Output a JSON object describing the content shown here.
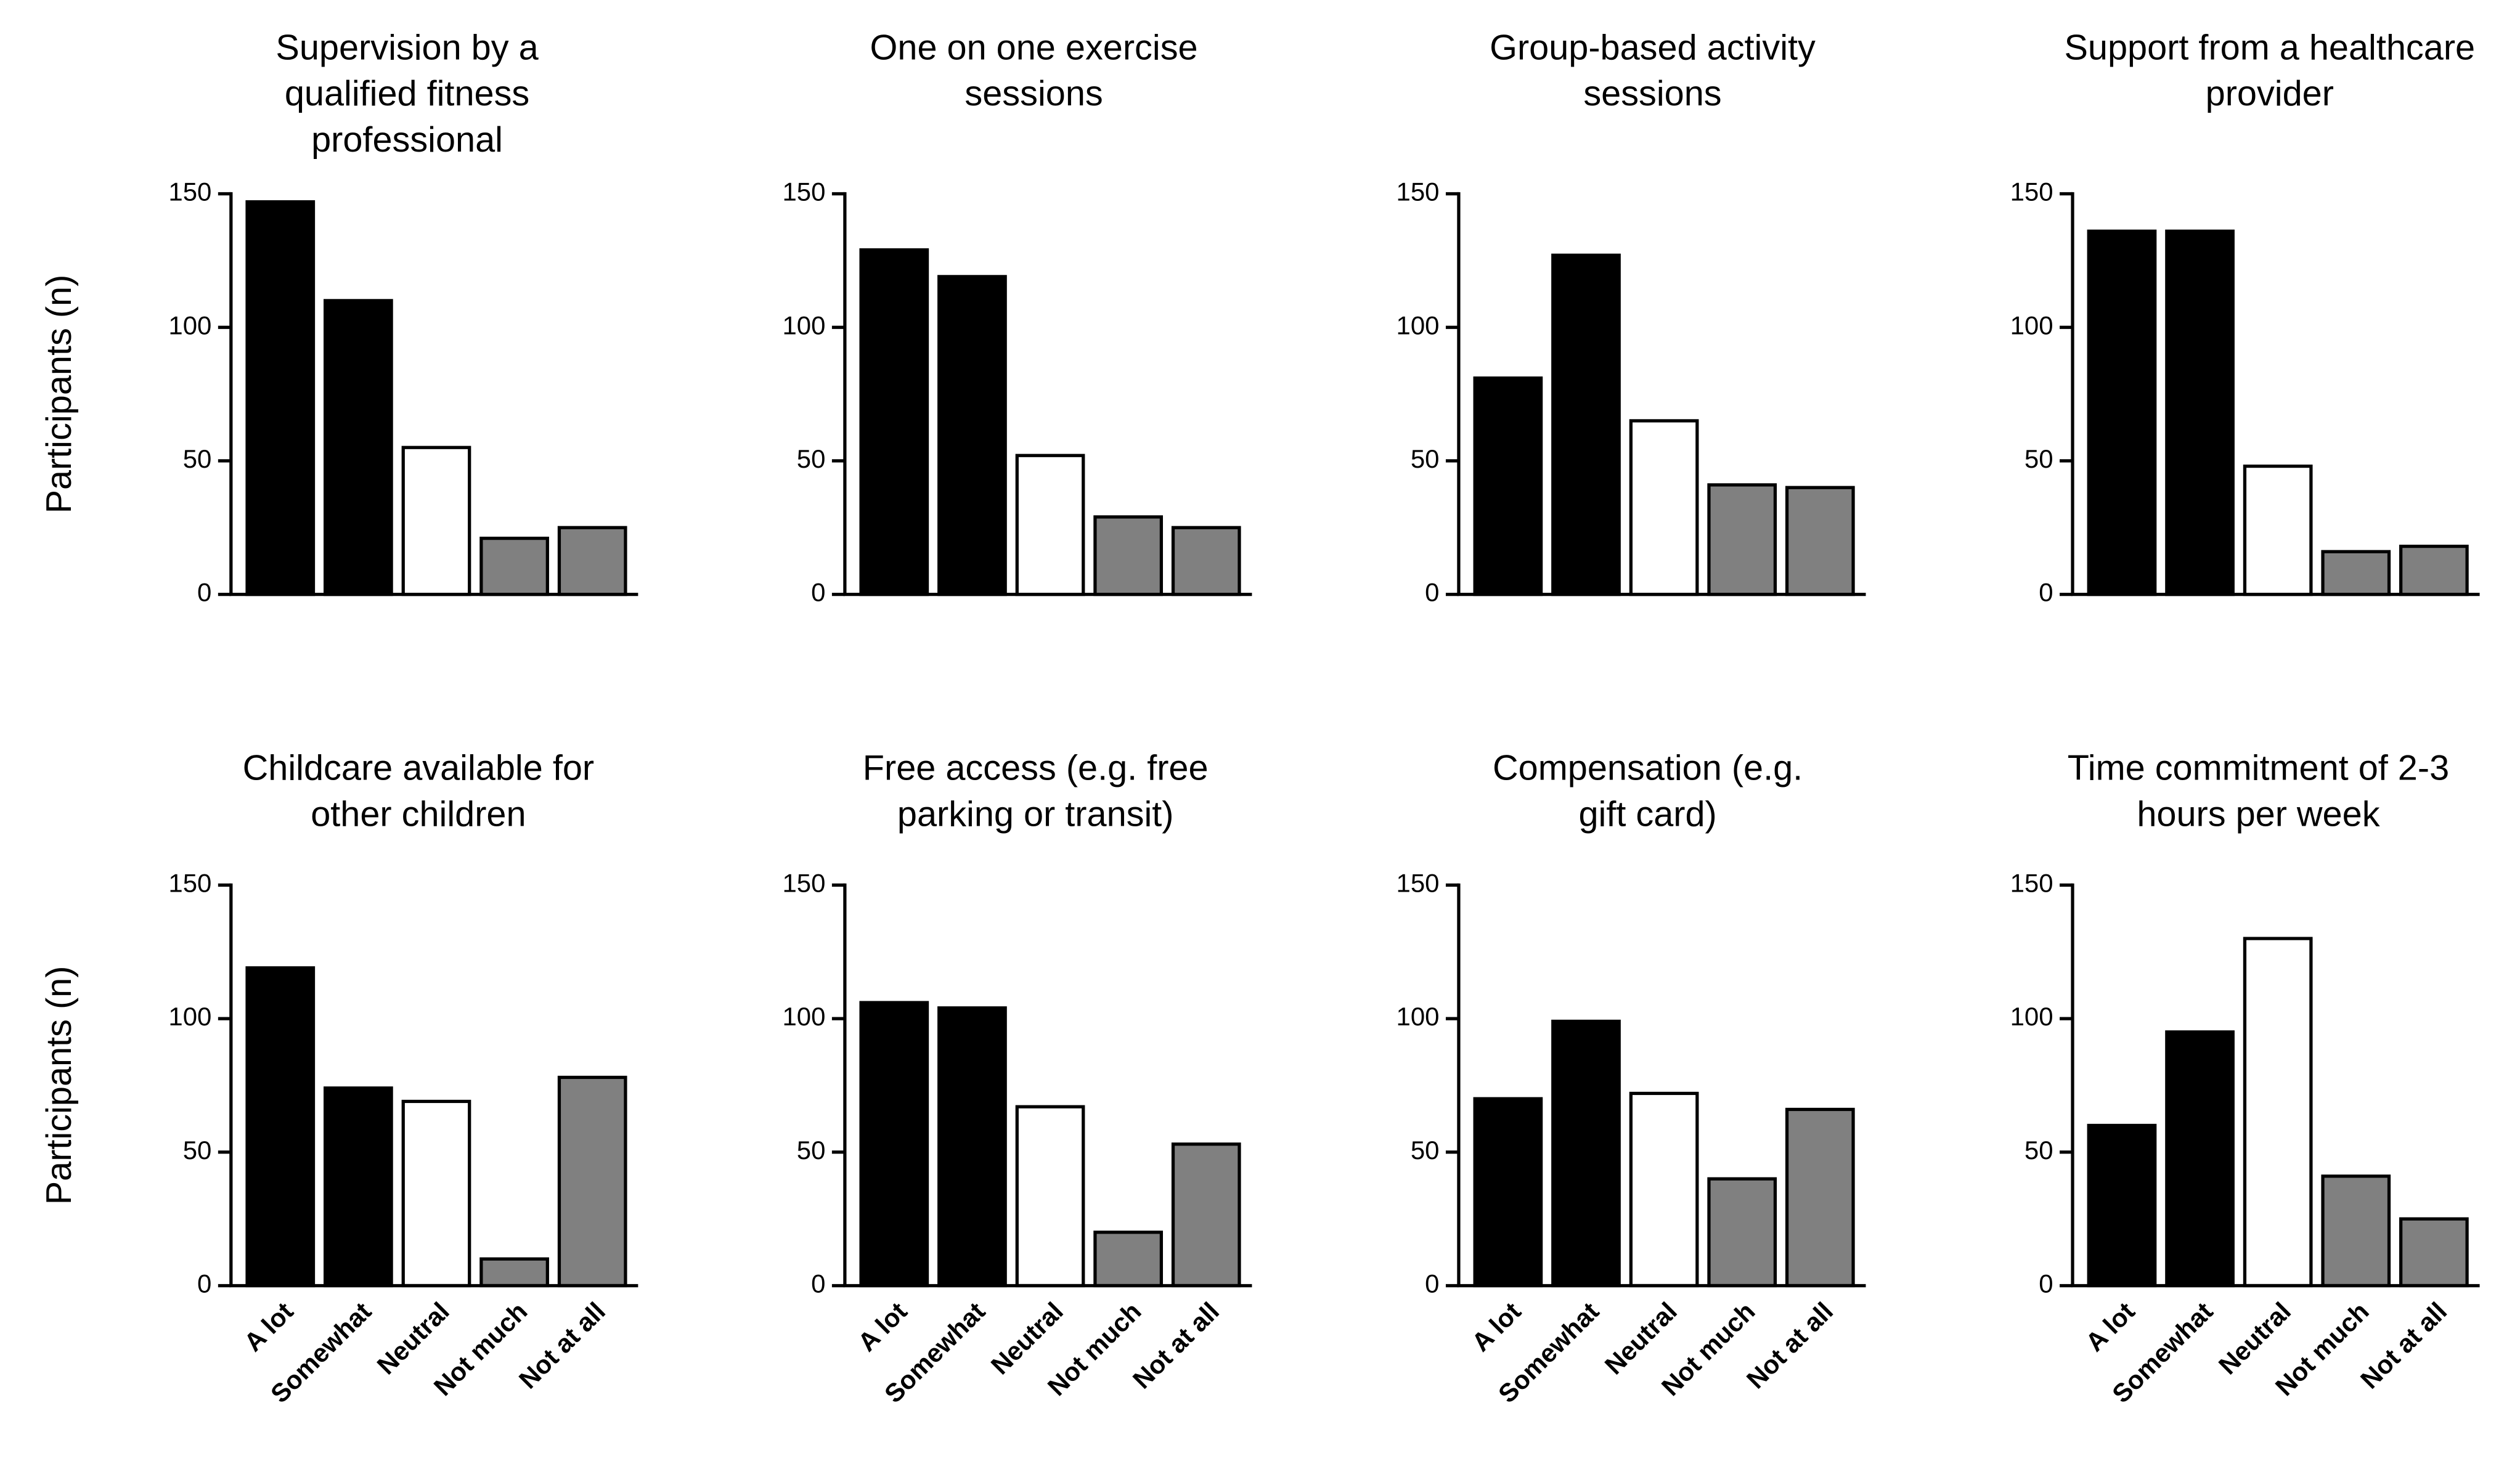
{
  "chart_data": [
    {
      "type": "bar",
      "title": [
        "Supervision by a",
        "qualified fitness",
        "professional"
      ],
      "ylabel": "Participants (n)",
      "categories": [
        null,
        null,
        null,
        null,
        null
      ],
      "values": [
        147,
        110,
        55,
        21,
        25
      ],
      "colors": [
        "#000000",
        "#000000",
        "#ffffff",
        "#808080",
        "#808080"
      ],
      "ylim": [
        0,
        150
      ],
      "yticks": [
        0,
        50,
        100,
        150
      ]
    },
    {
      "type": "bar",
      "title": [
        "One on one exercise",
        "sessions"
      ],
      "categories": [
        null,
        null,
        null,
        null,
        null
      ],
      "values": [
        129,
        119,
        52,
        29,
        25
      ],
      "colors": [
        "#000000",
        "#000000",
        "#ffffff",
        "#808080",
        "#808080"
      ],
      "ylim": [
        0,
        150
      ],
      "yticks": [
        0,
        50,
        100,
        150
      ]
    },
    {
      "type": "bar",
      "title": [
        "Group-based activity",
        "sessions"
      ],
      "categories": [
        null,
        null,
        null,
        null,
        null
      ],
      "values": [
        81,
        127,
        65,
        41,
        40
      ],
      "colors": [
        "#000000",
        "#000000",
        "#ffffff",
        "#808080",
        "#808080"
      ],
      "ylim": [
        0,
        150
      ],
      "yticks": [
        0,
        50,
        100,
        150
      ]
    },
    {
      "type": "bar",
      "title": [
        "Support from a healthcare",
        "provider"
      ],
      "categories": [
        null,
        null,
        null,
        null,
        null
      ],
      "values": [
        136,
        136,
        48,
        16,
        18
      ],
      "colors": [
        "#000000",
        "#000000",
        "#ffffff",
        "#808080",
        "#808080"
      ],
      "ylim": [
        0,
        150
      ],
      "yticks": [
        0,
        50,
        100,
        150
      ]
    },
    {
      "type": "bar",
      "title": [
        "Childcare available for",
        "other children"
      ],
      "ylabel": "Participants (n)",
      "categories": [
        "A lot",
        "Somewhat",
        "Neutral",
        "Not much",
        "Not at all"
      ],
      "values": [
        119,
        74,
        69,
        10,
        78
      ],
      "colors": [
        "#000000",
        "#000000",
        "#ffffff",
        "#808080",
        "#808080"
      ],
      "ylim": [
        0,
        150
      ],
      "yticks": [
        0,
        50,
        100,
        150
      ]
    },
    {
      "type": "bar",
      "title": [
        "Free access (e.g. free",
        "parking or transit)"
      ],
      "categories": [
        "A lot",
        "Somewhat",
        "Neutral",
        "Not much",
        "Not at all"
      ],
      "values": [
        106,
        104,
        67,
        20,
        53
      ],
      "colors": [
        "#000000",
        "#000000",
        "#ffffff",
        "#808080",
        "#808080"
      ],
      "ylim": [
        0,
        150
      ],
      "yticks": [
        0,
        50,
        100,
        150
      ]
    },
    {
      "type": "bar",
      "title": [
        "Compensation (e.g.",
        "gift card)"
      ],
      "categories": [
        "A lot",
        "Somewhat",
        "Neutral",
        "Not much",
        "Not at all"
      ],
      "values": [
        70,
        99,
        72,
        40,
        66
      ],
      "colors": [
        "#000000",
        "#000000",
        "#ffffff",
        "#808080",
        "#808080"
      ],
      "ylim": [
        0,
        150
      ],
      "yticks": [
        0,
        50,
        100,
        150
      ]
    },
    {
      "type": "bar",
      "title": [
        "Time commitment of 2-3",
        "hours per week"
      ],
      "categories": [
        "A lot",
        "Somewhat",
        "Neutral",
        "Not much",
        "Not at all"
      ],
      "values": [
        60,
        95,
        130,
        41,
        25
      ],
      "colors": [
        "#000000",
        "#000000",
        "#ffffff",
        "#808080",
        "#808080"
      ],
      "ylim": [
        0,
        150
      ],
      "yticks": [
        0,
        50,
        100,
        150
      ]
    }
  ]
}
